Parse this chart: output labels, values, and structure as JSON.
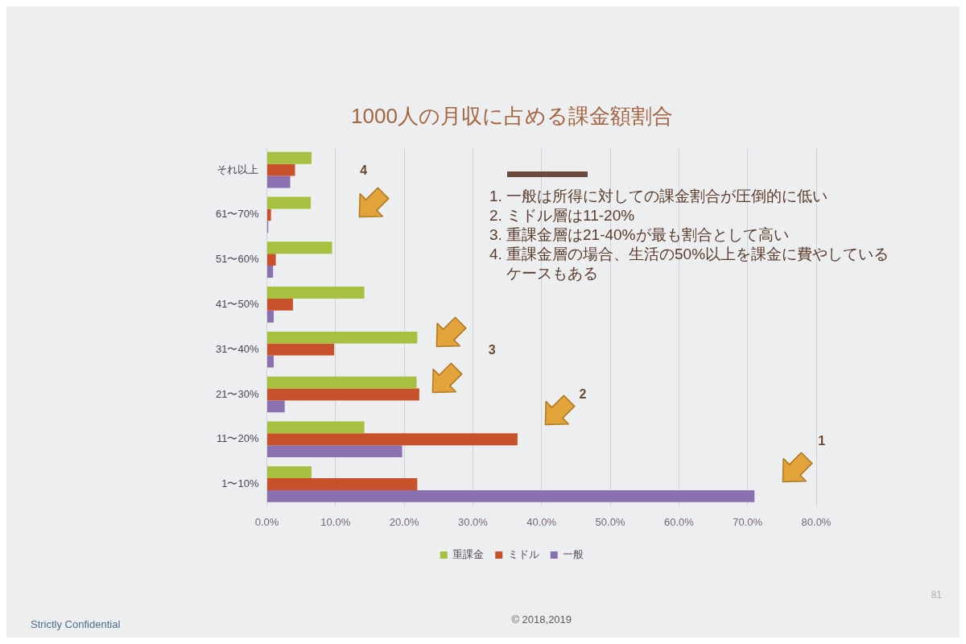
{
  "chart_data": {
    "type": "bar",
    "orientation": "horizontal",
    "title": "1000人の月収に占める課金額割合",
    "categories": [
      "それ以上",
      "61〜70%",
      "51〜60%",
      "41〜50%",
      "31〜40%",
      "21〜30%",
      "11〜20%",
      "1〜10%"
    ],
    "series": [
      {
        "name": "重課金",
        "color": "#a8c040",
        "values": [
          6.5,
          6.4,
          9.5,
          14.2,
          21.9,
          21.8,
          14.2,
          6.5
        ]
      },
      {
        "name": "ミドル",
        "color": "#c8502a",
        "values": [
          4.1,
          0.6,
          1.3,
          3.8,
          9.8,
          22.2,
          36.5,
          21.9
        ]
      },
      {
        "name": "一般",
        "color": "#8a70b0",
        "values": [
          3.4,
          0.2,
          0.9,
          1.0,
          1.0,
          2.6,
          19.7,
          71.0
        ]
      }
    ],
    "xlim": [
      0,
      80
    ],
    "xticks": [
      {
        "value": 0,
        "label": "0.0%"
      },
      {
        "value": 10,
        "label": "10.0%"
      },
      {
        "value": 20,
        "label": "20.0%"
      },
      {
        "value": 30,
        "label": "30.0%"
      },
      {
        "value": 40,
        "label": "40.0%"
      },
      {
        "value": 50,
        "label": "50.0%"
      },
      {
        "value": 60,
        "label": "60.0%"
      },
      {
        "value": 70,
        "label": "70.0%"
      },
      {
        "value": 80,
        "label": "80.0%"
      }
    ],
    "grid": "x",
    "legend": "bottom",
    "annotations": [
      "1. 一般は所得に対しての課金割合が圧倒的に低い",
      "2. ミドル層は11-20%",
      "3. 重課金層は21-40%が最も割合として高い",
      "4. 重課金層の場合、生活の50%以上を課金に費やしているケースもある",
      "1",
      "2",
      "3",
      "4",
      "Strictly Confidential",
      "© 2018,2019",
      "81"
    ]
  }
}
